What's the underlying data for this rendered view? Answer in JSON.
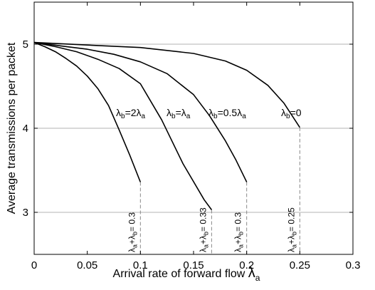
{
  "chart_data": {
    "type": "line",
    "title": "",
    "xlabel": {
      "text": "Arrival rate of forward flow ",
      "symbol": "λ",
      "sub": "a"
    },
    "ylabel": "Average transmissions per packet",
    "xlim": [
      0,
      0.3
    ],
    "ylim": [
      2.5,
      5.5
    ],
    "x_ticks": [
      "0",
      "0.05",
      "0.1",
      "0.15",
      "0.2",
      "0.25",
      "0.3"
    ],
    "y_ticks": [
      "3",
      "4",
      "5"
    ],
    "grid": "horizontal",
    "series": [
      {
        "label": [
          {
            "t": "λ"
          },
          {
            "t": "b",
            "sub": true
          },
          {
            "t": "=2λ"
          },
          {
            "t": "a",
            "sub": true
          }
        ],
        "x": [
          0,
          0.01,
          0.02,
          0.03,
          0.04,
          0.05,
          0.06,
          0.07,
          0.08,
          0.09,
          0.1
        ],
        "y": [
          5.02,
          4.97,
          4.91,
          4.83,
          4.74,
          4.62,
          4.47,
          4.27,
          3.98,
          3.68,
          3.36
        ]
      },
      {
        "label": [
          {
            "t": "λ"
          },
          {
            "t": "b",
            "sub": true
          },
          {
            "t": "=λ"
          },
          {
            "t": "a",
            "sub": true
          }
        ],
        "x": [
          0,
          0.02,
          0.04,
          0.06,
          0.08,
          0.1,
          0.12,
          0.14,
          0.16,
          0.167
        ],
        "y": [
          5.02,
          4.97,
          4.91,
          4.82,
          4.71,
          4.53,
          4.1,
          3.58,
          3.15,
          3.03
        ]
      },
      {
        "label": [
          {
            "t": "λ"
          },
          {
            "t": "b",
            "sub": true
          },
          {
            "t": "=0.5λ"
          },
          {
            "t": "a",
            "sub": true
          }
        ],
        "x": [
          0,
          0.025,
          0.05,
          0.075,
          0.1,
          0.125,
          0.15,
          0.165,
          0.18,
          0.19,
          0.2
        ],
        "y": [
          5.02,
          4.98,
          4.94,
          4.88,
          4.79,
          4.65,
          4.4,
          4.15,
          3.85,
          3.62,
          3.36
        ]
      },
      {
        "label": [
          {
            "t": "λ"
          },
          {
            "t": "b",
            "sub": true
          },
          {
            "t": "=0"
          }
        ],
        "x": [
          0,
          0.05,
          0.1,
          0.15,
          0.18,
          0.2,
          0.22,
          0.235,
          0.25
        ],
        "y": [
          5.02,
          4.99,
          4.96,
          4.89,
          4.8,
          4.69,
          4.51,
          4.3,
          4.01
        ]
      }
    ],
    "capacity_markers": [
      {
        "x": 0.1,
        "y_top": 3.36,
        "label": [
          {
            "t": "λ"
          },
          {
            "t": "a",
            "sub": true
          },
          {
            "t": "+λ"
          },
          {
            "t": "b",
            "sub": true
          },
          {
            "t": "= 0.3"
          }
        ]
      },
      {
        "x": 0.167,
        "y_top": 3.03,
        "label": [
          {
            "t": "λ"
          },
          {
            "t": "a",
            "sub": true
          },
          {
            "t": "+λ"
          },
          {
            "t": "b",
            "sub": true
          },
          {
            "t": "= 0.33"
          }
        ]
      },
      {
        "x": 0.2,
        "y_top": 3.36,
        "label": [
          {
            "t": "λ"
          },
          {
            "t": "a",
            "sub": true
          },
          {
            "t": "+λ"
          },
          {
            "t": "b",
            "sub": true
          },
          {
            "t": "= 0.3"
          }
        ]
      },
      {
        "x": 0.25,
        "y_top": 4.01,
        "label": [
          {
            "t": "λ"
          },
          {
            "t": "a",
            "sub": true
          },
          {
            "t": "+λ"
          },
          {
            "t": "b",
            "sub": true
          },
          {
            "t": "= 0.25"
          }
        ]
      }
    ]
  }
}
